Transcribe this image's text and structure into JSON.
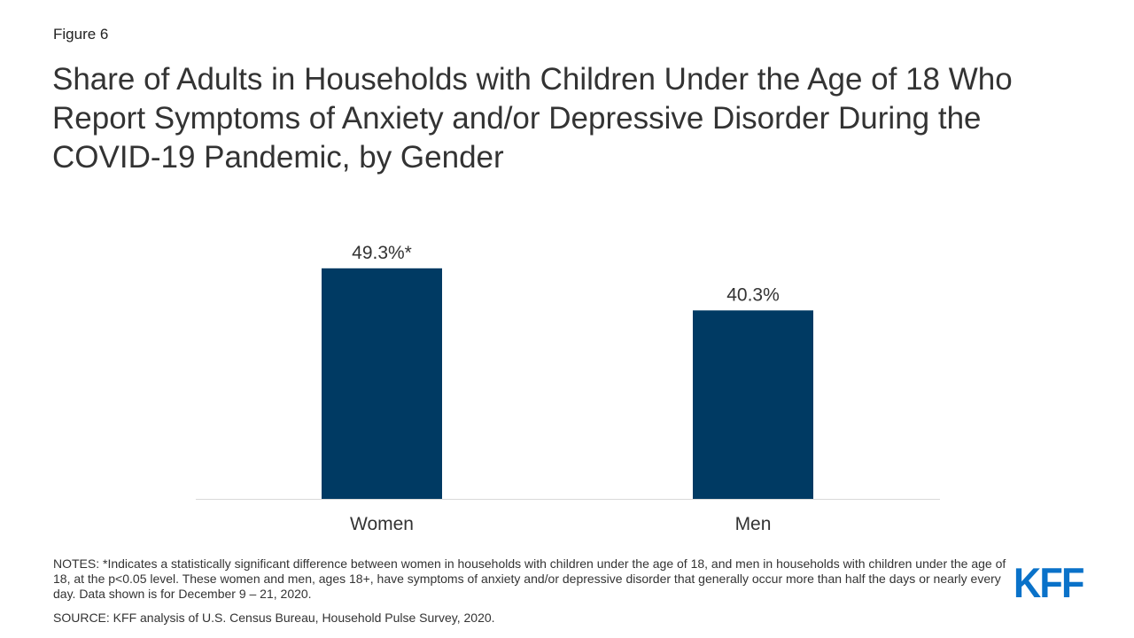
{
  "figure_label": "Figure 6",
  "title": "Share of Adults in Households with Children Under the Age of 18 Who Report Symptoms of Anxiety and/or Depressive Disorder During the COVID-19 Pandemic, by Gender",
  "chart_data": {
    "type": "bar",
    "categories": [
      "Women",
      "Men"
    ],
    "values": [
      49.3,
      40.3
    ],
    "data_labels": [
      "49.3%*",
      "40.3%"
    ],
    "title": "Share of Adults in Households with Children Under the Age of 18 Who Report Symptoms of Anxiety and/or Depressive Disorder During the COVID-19 Pandemic, by Gender",
    "xlabel": "",
    "ylabel": "",
    "ylim": [
      0,
      54
    ],
    "grid": false,
    "bar_color": "#003a63",
    "axis_color": "#d9d9d9"
  },
  "notes": "NOTES: *Indicates a statistically significant difference between women in households with children under the age of 18, and men in households with children under the age of 18, at the p<0.05 level. These women and men, ages 18+, have symptoms of anxiety and/or depressive disorder that generally occur more than half the days or nearly every day. Data shown is for December 9 – 21, 2020.",
  "source": "SOURCE: KFF analysis of U.S. Census Bureau, Household Pulse Survey, 2020.",
  "logo_text": "KFF"
}
